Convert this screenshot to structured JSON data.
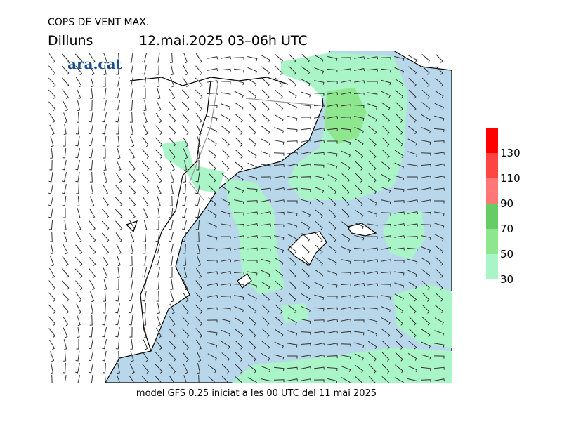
{
  "header": {
    "title": "COPS DE VENT MAX.",
    "day": "Dilluns",
    "period": "12.mai.2025 03–06h UTC",
    "logo": "ara.cat"
  },
  "footer": "model GFS 0.25 iniciat a les 00 UTC del 11 mai 2025",
  "colorbar": {
    "levels": [
      30,
      50,
      70,
      90,
      110,
      130
    ],
    "colors": [
      "#aaf5c8",
      "#8ee68e",
      "#66cc66",
      "#ff7777",
      "#ff4444",
      "#ff0000"
    ]
  }
}
